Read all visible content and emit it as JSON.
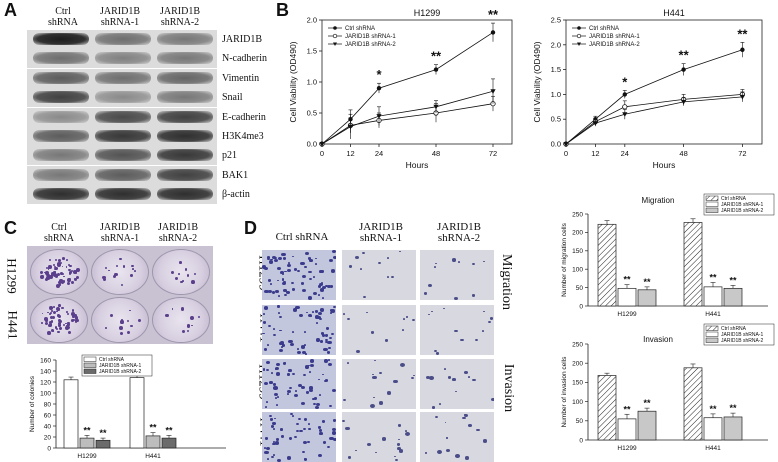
{
  "panelA": {
    "letter": "A",
    "columns": [
      "Ctrl\nshRNA",
      "JARID1B\nshRNA-1",
      "JARID1B\nshRNA-2"
    ],
    "rows": [
      "JARID1B",
      "N-cadherin",
      "Vimentin",
      "Snail",
      "E-cadherin",
      "H3K4me3",
      "p21",
      "BAK1",
      "β-actin"
    ]
  },
  "panelB": {
    "letter": "B"
  },
  "panelC": {
    "letter": "C",
    "columns": [
      "Ctrl\nshRNA",
      "JARID1B\nshRNA-1",
      "JARID1B\nshRNA-2"
    ],
    "rows": [
      "H1299",
      "H441"
    ]
  },
  "panelD": {
    "letter": "D",
    "columns": [
      "Ctrl shRNA",
      "JARID1B\nshRNA-1",
      "JARID1B\nshRNA-2"
    ],
    "rows": [
      "H1299",
      "H441",
      "H1299",
      "H441"
    ],
    "side_labels": [
      "Migration",
      "Invasion"
    ]
  },
  "chart_data": [
    {
      "id": "viability-h1299",
      "type": "line",
      "title": "H1299",
      "xlabel": "Hours",
      "ylabel": "Cell Viability (OD490)",
      "x": [
        0,
        12,
        24,
        48,
        72
      ],
      "xlim": [
        0,
        80
      ],
      "ylim": [
        0,
        2.0
      ],
      "yticks": [
        "0.0",
        "0.5",
        "1.0",
        "1.5",
        "2.0"
      ],
      "xticks": [
        "0",
        "12",
        "24",
        "48",
        "72"
      ],
      "legend": "top-left",
      "series": [
        {
          "name": "Ctrl shRNA",
          "values": [
            0.0,
            0.4,
            0.9,
            1.2,
            1.8
          ],
          "errors": [
            0,
            0.15,
            0.08,
            0.08,
            0.15
          ],
          "marker": "filled-circle"
        },
        {
          "name": "JARID1B shRNA-1",
          "values": [
            0.0,
            0.3,
            0.38,
            0.5,
            0.65
          ],
          "errors": [
            0,
            0.12,
            0.12,
            0.15,
            0.12
          ],
          "marker": "open-circle"
        },
        {
          "name": "JARID1B shRNA-2",
          "values": [
            0.0,
            0.28,
            0.45,
            0.6,
            0.85
          ],
          "errors": [
            0,
            0.2,
            0.15,
            0.1,
            0.2
          ],
          "marker": "filled-triangle"
        }
      ],
      "annotations": [
        {
          "x": 24,
          "text": "*"
        },
        {
          "x": 48,
          "text": "**"
        },
        {
          "x": 72,
          "text": "**"
        }
      ]
    },
    {
      "id": "viability-h441",
      "type": "line",
      "title": "H441",
      "xlabel": "Hours",
      "ylabel": "Cell Viability (OD490)",
      "x": [
        0,
        12,
        24,
        48,
        72
      ],
      "xlim": [
        0,
        80
      ],
      "ylim": [
        0,
        2.5
      ],
      "yticks": [
        "0.0",
        "0.5",
        "1.0",
        "1.5",
        "2.0",
        "2.5"
      ],
      "xticks": [
        "0",
        "12",
        "24",
        "48",
        "72"
      ],
      "legend": "top-left",
      "series": [
        {
          "name": "Ctrl shRNA",
          "values": [
            0.0,
            0.5,
            1.0,
            1.5,
            1.9
          ],
          "errors": [
            0,
            0.06,
            0.08,
            0.12,
            0.15
          ],
          "marker": "filled-circle"
        },
        {
          "name": "JARID1B shRNA-1",
          "values": [
            0.0,
            0.45,
            0.75,
            0.9,
            1.0
          ],
          "errors": [
            0,
            0.06,
            0.12,
            0.1,
            0.1
          ],
          "marker": "open-circle"
        },
        {
          "name": "JARID1B shRNA-2",
          "values": [
            0.0,
            0.42,
            0.6,
            0.85,
            0.95
          ],
          "errors": [
            0,
            0.06,
            0.1,
            0.08,
            0.1
          ],
          "marker": "filled-triangle"
        }
      ],
      "annotations": [
        {
          "x": 24,
          "text": "*"
        },
        {
          "x": 48,
          "text": "**"
        },
        {
          "x": 72,
          "text": "**"
        }
      ]
    },
    {
      "id": "colonies",
      "type": "bar",
      "ylabel": "Number of colonies",
      "categories": [
        "H1299",
        "H441"
      ],
      "ylim": [
        0,
        160
      ],
      "yticks": [
        "0",
        "20",
        "40",
        "60",
        "80",
        "100",
        "120",
        "140",
        "160"
      ],
      "legend": "top-center",
      "series": [
        {
          "name": "Ctrl shRNA",
          "values": [
            124,
            128
          ],
          "errors": [
            5,
            6
          ],
          "fill": "#ffffff",
          "sig": ""
        },
        {
          "name": "JARID1B shRNA-1",
          "values": [
            18,
            22
          ],
          "errors": [
            5,
            6
          ],
          "fill": "#bdbdbd",
          "sig": "**"
        },
        {
          "name": "JARID1B shRNA-2",
          "values": [
            14,
            18
          ],
          "errors": [
            4,
            5
          ],
          "fill": "#6b6b6b",
          "sig": "**"
        }
      ]
    },
    {
      "id": "migration",
      "type": "bar",
      "title": "Migration",
      "ylabel": "Number of migration cells",
      "categories": [
        "H1299",
        "H441"
      ],
      "ylim": [
        0,
        250
      ],
      "yticks": [
        "0",
        "50",
        "100",
        "150",
        "200",
        "250"
      ],
      "legend": "top-right",
      "series": [
        {
          "name": "Ctrl shRNA",
          "values": [
            222,
            227
          ],
          "errors": [
            10,
            10
          ],
          "fill": "hatch",
          "sig": ""
        },
        {
          "name": "JARID1B shRNA-1",
          "values": [
            48,
            52
          ],
          "errors": [
            10,
            12
          ],
          "fill": "#ffffff",
          "sig": "**"
        },
        {
          "name": "JARID1B shRNA-2",
          "values": [
            44,
            48
          ],
          "errors": [
            8,
            8
          ],
          "fill": "#c8c8c8",
          "sig": "**"
        }
      ]
    },
    {
      "id": "invasion",
      "type": "bar",
      "title": "Invasion",
      "ylabel": "Number of invasion cells",
      "categories": [
        "H1299",
        "H441"
      ],
      "ylim": [
        0,
        250
      ],
      "yticks": [
        "0",
        "50",
        "100",
        "150",
        "200",
        "250"
      ],
      "legend": "top-right",
      "series": [
        {
          "name": "Ctrl shRNA",
          "values": [
            168,
            188
          ],
          "errors": [
            6,
            10
          ],
          "fill": "hatch",
          "sig": ""
        },
        {
          "name": "JARID1B shRNA-1",
          "values": [
            55,
            58
          ],
          "errors": [
            12,
            10
          ],
          "fill": "#ffffff",
          "sig": "**"
        },
        {
          "name": "JARID1B shRNA-2",
          "values": [
            75,
            60
          ],
          "errors": [
            8,
            10
          ],
          "fill": "#c8c8c8",
          "sig": "**"
        }
      ]
    }
  ]
}
